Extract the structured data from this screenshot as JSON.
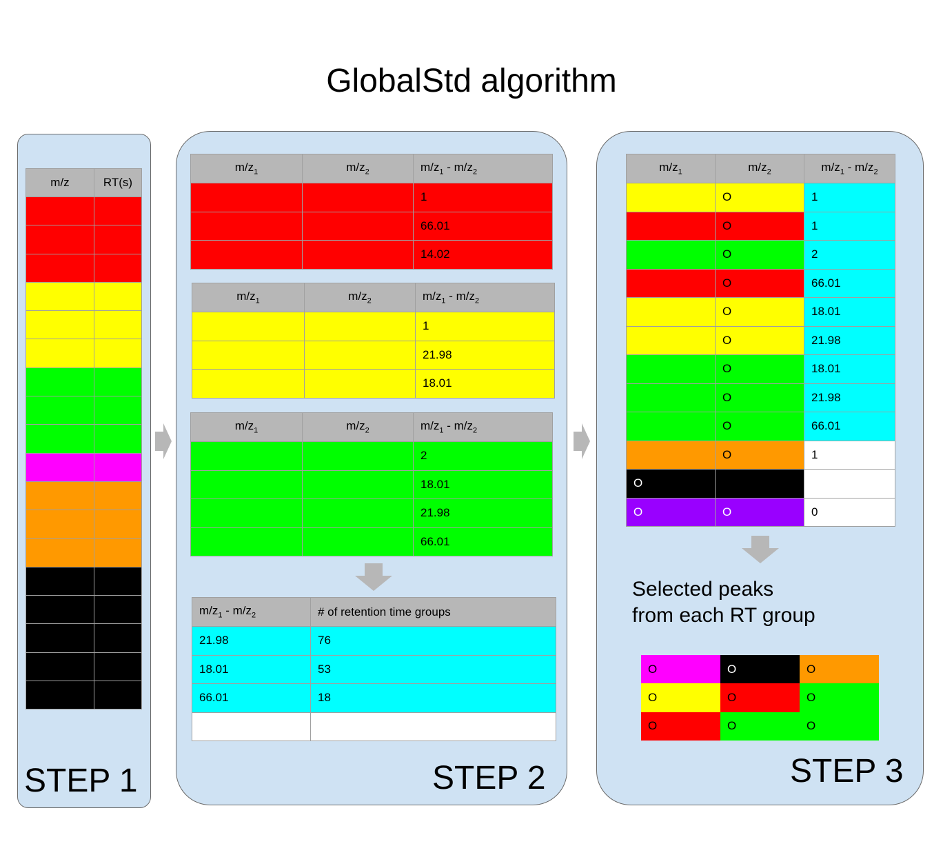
{
  "title": "GlobalStd algorithm",
  "step1": {
    "label": "STEP 1",
    "headers": [
      "m/z",
      "RT(s)"
    ],
    "row_colors": [
      "#ff0000",
      "#ff0000",
      "#ff0000",
      "#ffff00",
      "#ffff00",
      "#ffff00",
      "#00ff00",
      "#00ff00",
      "#00ff00",
      "#ff00ff",
      "#ff9900",
      "#ff9900",
      "#ff9900",
      "#000000",
      "#000000",
      "#000000",
      "#000000",
      "#000000"
    ]
  },
  "step2": {
    "label": "STEP 2",
    "header": {
      "mz1": "m/z",
      "mz2": "m/z",
      "diff_a": "m/z",
      "diff_sep": " - m/z",
      "sub1": "1",
      "sub2": "2"
    },
    "tables": [
      {
        "color": "#ff0000",
        "diffs": [
          "1",
          "66.01",
          "14.02"
        ]
      },
      {
        "color": "#ffff00",
        "diffs": [
          "1",
          "21.98",
          "18.01"
        ]
      },
      {
        "color": "#00ff00",
        "diffs": [
          "2",
          "18.01",
          "21.98",
          "66.01"
        ]
      }
    ],
    "summary": {
      "col1_a": "m/z",
      "col1_sep": " - m/z",
      "sub1": "1",
      "sub2": "2",
      "col2": "# of retention time groups",
      "rows": [
        {
          "diff": "21.98",
          "count": "76"
        },
        {
          "diff": "18.01",
          "count": "53"
        },
        {
          "diff": "66.01",
          "count": "18"
        },
        {
          "diff": "",
          "count": ""
        }
      ]
    }
  },
  "step3": {
    "label": "STEP 3",
    "header": {
      "mz1": "m/z",
      "mz2": "m/z",
      "diff_a": "m/z",
      "diff_sep": " - m/z",
      "sub1": "1",
      "sub2": "2"
    },
    "rows": [
      {
        "c1": "#ffff00",
        "t1": "",
        "c2": "#ffff00",
        "t2": "O",
        "c3": "#00ffff",
        "t3": "1"
      },
      {
        "c1": "#ff0000",
        "t1": "",
        "c2": "#ff0000",
        "t2": "O",
        "c3": "#00ffff",
        "t3": "1"
      },
      {
        "c1": "#00ff00",
        "t1": "",
        "c2": "#00ff00",
        "t2": "O",
        "c3": "#00ffff",
        "t3": "2"
      },
      {
        "c1": "#ff0000",
        "t1": "",
        "c2": "#ff0000",
        "t2": "O",
        "c3": "#00ffff",
        "t3": "66.01"
      },
      {
        "c1": "#ffff00",
        "t1": "",
        "c2": "#ffff00",
        "t2": "O",
        "c3": "#00ffff",
        "t3": "18.01"
      },
      {
        "c1": "#ffff00",
        "t1": "",
        "c2": "#ffff00",
        "t2": "O",
        "c3": "#00ffff",
        "t3": "21.98"
      },
      {
        "c1": "#00ff00",
        "t1": "",
        "c2": "#00ff00",
        "t2": "O",
        "c3": "#00ffff",
        "t3": "18.01"
      },
      {
        "c1": "#00ff00",
        "t1": "",
        "c2": "#00ff00",
        "t2": "O",
        "c3": "#00ffff",
        "t3": "21.98"
      },
      {
        "c1": "#00ff00",
        "t1": "",
        "c2": "#00ff00",
        "t2": "O",
        "c3": "#00ffff",
        "t3": "66.01"
      },
      {
        "c1": "#ff9900",
        "t1": "",
        "c2": "#ff9900",
        "t2": "O",
        "c3": "#ffffff",
        "t3": "1"
      },
      {
        "c1": "#000000",
        "t1": "O",
        "c2": "#000000",
        "t2": "",
        "c3": "#ffffff",
        "t3": ""
      },
      {
        "c1": "#9900ff",
        "t1": "O",
        "c2": "#9900ff",
        "t2": "O",
        "c3": "#ffffff",
        "t3": "0"
      }
    ],
    "selected_text_line1": "Selected peaks",
    "selected_text_line2": "from each RT group",
    "selected": [
      [
        {
          "color": "#ff00ff",
          "text": "O"
        },
        {
          "color": "#000000",
          "text": "O"
        },
        {
          "color": "#ff9900",
          "text": "O"
        }
      ],
      [
        {
          "color": "#ffff00",
          "text": "O"
        },
        {
          "color": "#ff0000",
          "text": "O"
        },
        {
          "color": "#00ff00",
          "text": "O"
        }
      ],
      [
        {
          "color": "#ff0000",
          "text": "O"
        },
        {
          "color": "#00ff00",
          "text": "O"
        },
        {
          "color": "#00ff00",
          "text": "O"
        }
      ]
    ]
  }
}
